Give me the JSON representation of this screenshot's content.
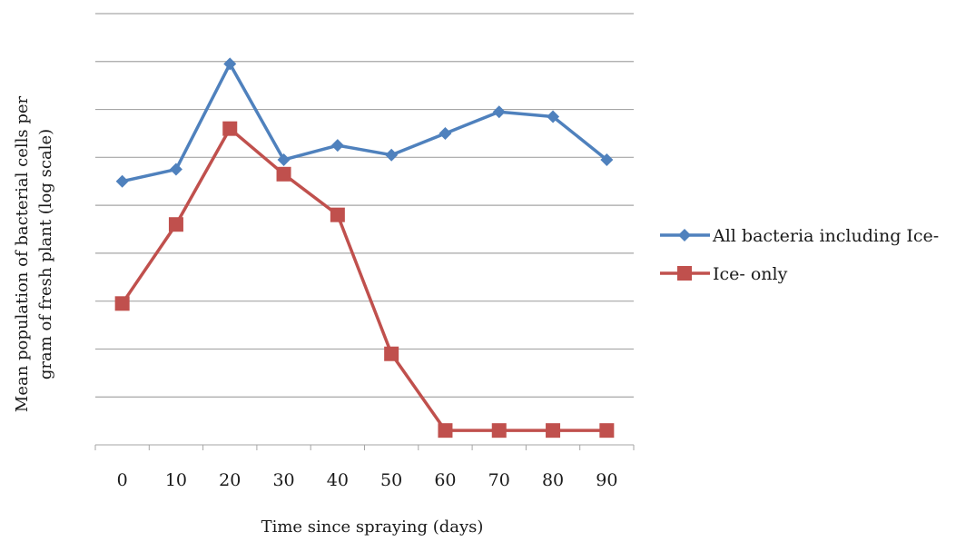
{
  "chart_data": {
    "type": "line",
    "title": "",
    "xlabel": "Time since spraying (days)",
    "ylabel_line1": "Mean population of bacterial cells per",
    "ylabel_line2": "gram of fresh plant (log scale)",
    "categories": [
      "0",
      "10",
      "20",
      "30",
      "40",
      "50",
      "60",
      "70",
      "80",
      "90"
    ],
    "ylim": [
      0,
      9
    ],
    "grid": true,
    "legend_position": "right",
    "series": [
      {
        "name": "All bacteria including Ice-",
        "color": "#4f81bd",
        "marker": "diamond",
        "values": [
          5.5,
          5.75,
          7.95,
          5.95,
          6.25,
          6.05,
          6.5,
          6.95,
          6.85,
          5.95
        ]
      },
      {
        "name": "Ice- only",
        "color": "#c0504d",
        "marker": "square",
        "values": [
          2.95,
          4.6,
          6.6,
          5.65,
          4.8,
          1.9,
          0.3,
          0.3,
          0.3,
          0.3
        ]
      }
    ]
  }
}
